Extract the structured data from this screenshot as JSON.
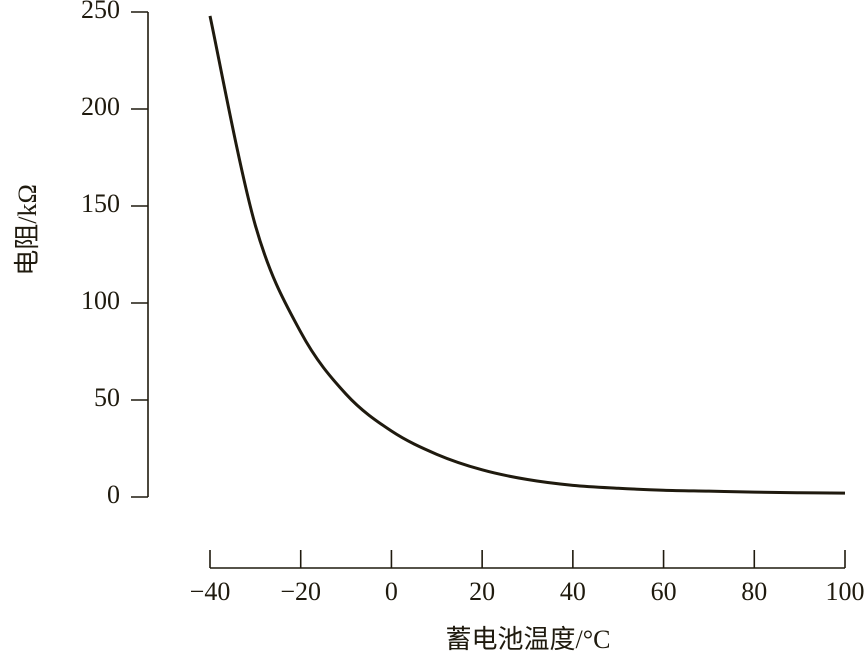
{
  "chart_data": {
    "type": "line",
    "x_label": "蓄电池温度/°C",
    "y_label": "电阻/kΩ",
    "x": [
      -40,
      -30,
      -20,
      -10,
      0,
      10,
      20,
      30,
      40,
      50,
      60,
      70,
      80,
      90,
      100
    ],
    "series": [
      {
        "color": "#1f1a0e",
        "values": [
          248,
          140,
          85,
          53,
          34,
          22,
          14,
          9,
          6,
          4.5,
          3.5,
          3,
          2.5,
          2.2,
          2
        ]
      }
    ],
    "xlim": [
      -40,
      100
    ],
    "xticks": [
      {
        "value": -40,
        "label": "−40"
      },
      {
        "value": -20,
        "label": "−20"
      },
      0,
      20,
      40,
      60,
      80,
      100
    ],
    "ylim": [
      0,
      250
    ],
    "yticks": [
      0,
      50,
      100,
      150,
      200,
      250
    ]
  }
}
